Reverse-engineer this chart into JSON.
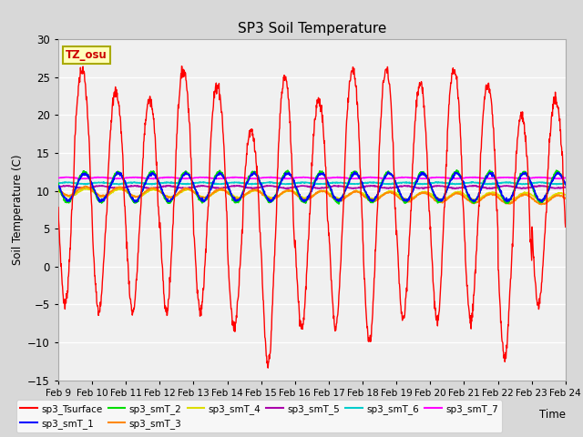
{
  "title": "SP3 Soil Temperature",
  "ylabel": "Soil Temperature (C)",
  "xlabel": "Time",
  "ylim": [
    -15,
    30
  ],
  "yticks": [
    -15,
    -10,
    -5,
    0,
    5,
    10,
    15,
    20,
    25,
    30
  ],
  "date_labels": [
    "Feb 9",
    "Feb 10",
    "Feb 11",
    "Feb 12",
    "Feb 13",
    "Feb 14",
    "Feb 15",
    "Feb 16",
    "Feb 17",
    "Feb 18",
    "Feb 19",
    "Feb 20",
    "Feb 21",
    "Feb 22",
    "Feb 23",
    "Feb 24"
  ],
  "tz_label": "TZ_osu",
  "series_colors": {
    "sp3_Tsurface": "#ff0000",
    "sp3_smT_1": "#0000ff",
    "sp3_smT_2": "#00dd00",
    "sp3_smT_3": "#ff8800",
    "sp3_smT_4": "#dddd00",
    "sp3_smT_5": "#aa00aa",
    "sp3_smT_6": "#00cccc",
    "sp3_smT_7": "#ff00ff"
  },
  "background_color": "#d8d8d8",
  "plot_bg_color": "#f0f0f0",
  "grid_color": "#ffffff",
  "n_days": 15,
  "legend_ncol_row1": 6,
  "legend_ncol_row2": 2
}
